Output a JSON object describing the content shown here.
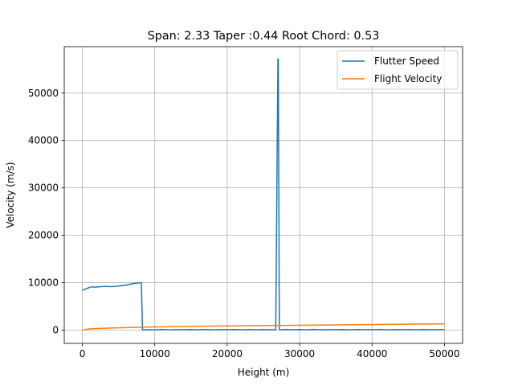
{
  "chart_data": {
    "type": "line",
    "title": "Span: 2.33 Taper :0.44 Root Chord: 0.53",
    "xlabel": "Height (m)",
    "ylabel": "Velocity (m/s)",
    "xlim": [
      -2500,
      52500
    ],
    "ylim": [
      -2800,
      59800
    ],
    "xticks": [
      0,
      10000,
      20000,
      30000,
      40000,
      50000
    ],
    "yticks": [
      0,
      10000,
      20000,
      30000,
      40000,
      50000
    ],
    "grid": true,
    "legend_position": "upper right",
    "series": [
      {
        "name": "Flutter Speed",
        "color": "#1f77b4",
        "x": [
          0,
          500,
          1000,
          1300,
          1600,
          2000,
          2500,
          3000,
          3500,
          4000,
          4500,
          5000,
          5500,
          6000,
          6500,
          7000,
          7500,
          8000,
          8150,
          8300,
          9000,
          10000,
          11000,
          12000,
          13000,
          14000,
          15000,
          16000,
          17000,
          18000,
          19000,
          20000,
          21000,
          22000,
          23000,
          24000,
          25000,
          26000,
          26700,
          27000,
          27050,
          27200,
          27400,
          28000,
          29000,
          30000,
          31000,
          32000,
          33000,
          34000,
          35000,
          36000,
          37000,
          38000,
          39000,
          40000,
          41000,
          42000,
          43000,
          44000,
          45000,
          46000,
          47000,
          48000,
          49000,
          50000
        ],
        "y": [
          8400,
          8700,
          9000,
          9150,
          9050,
          9100,
          9150,
          9200,
          9200,
          9150,
          9200,
          9300,
          9400,
          9500,
          9650,
          9800,
          9900,
          10000,
          10000,
          50,
          100,
          50,
          150,
          50,
          100,
          80,
          120,
          60,
          150,
          50,
          100,
          80,
          120,
          70,
          130,
          60,
          110,
          90,
          50,
          57200,
          57200,
          100,
          50,
          150,
          80,
          120,
          60,
          140,
          70,
          110,
          90,
          130,
          60,
          120,
          80,
          100,
          150,
          70,
          110,
          90,
          130,
          60,
          120,
          80,
          100,
          90
        ]
      },
      {
        "name": "Flight Velocity",
        "color": "#ff7f0e",
        "x": [
          0,
          500,
          1000,
          2000,
          3000,
          4000,
          5000,
          6000,
          7000,
          8000,
          10000,
          12000,
          14000,
          16000,
          18000,
          20000,
          22000,
          24000,
          26000,
          28000,
          30000,
          32000,
          34000,
          36000,
          38000,
          40000,
          42000,
          44000,
          46000,
          48000,
          50000
        ],
        "y": [
          0,
          150,
          250,
          330,
          390,
          440,
          490,
          530,
          570,
          605,
          665,
          720,
          765,
          805,
          840,
          875,
          905,
          935,
          965,
          995,
          1025,
          1055,
          1085,
          1115,
          1145,
          1175,
          1205,
          1235,
          1265,
          1295,
          1320
        ]
      }
    ]
  }
}
